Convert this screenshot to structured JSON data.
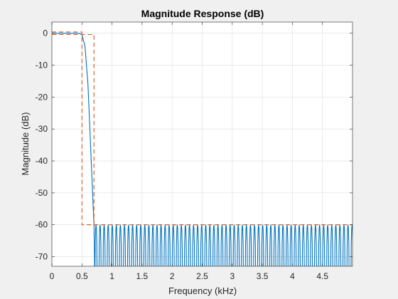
{
  "chart_data": {
    "type": "line",
    "title": "Magnitude Response (dB)",
    "xlabel": "Frequency (kHz)",
    "ylabel": "Magnitude (dB)",
    "xlim": [
      0,
      5
    ],
    "ylim": [
      -73,
      3.5
    ],
    "grid": true,
    "x_ticks": [
      {
        "value": 0,
        "label": "0"
      },
      {
        "value": 0.5,
        "label": "0.5"
      },
      {
        "value": 1,
        "label": "1"
      },
      {
        "value": 1.5,
        "label": "1.5"
      },
      {
        "value": 2,
        "label": "2"
      },
      {
        "value": 2.5,
        "label": "2.5"
      },
      {
        "value": 3,
        "label": "3"
      },
      {
        "value": 3.5,
        "label": "3.5"
      },
      {
        "value": 4,
        "label": "4"
      },
      {
        "value": 4.5,
        "label": "4.5"
      }
    ],
    "y_ticks": [
      {
        "value": 0,
        "label": "0"
      },
      {
        "value": -10,
        "label": "-10"
      },
      {
        "value": -20,
        "label": "-20"
      },
      {
        "value": -30,
        "label": "-30"
      },
      {
        "value": -40,
        "label": "-40"
      },
      {
        "value": -50,
        "label": "-50"
      },
      {
        "value": -60,
        "label": "-60"
      },
      {
        "value": -70,
        "label": "-70"
      }
    ],
    "series": [
      {
        "color": "#0072BD",
        "style": "solid",
        "passband_edge_khz": 0.5,
        "stopband_edge_khz": 0.7,
        "stopband_peak_db": -60,
        "lobe_width_khz": 0.0676,
        "points": [
          [
            0,
            0
          ],
          [
            0.45,
            0
          ],
          [
            0.5,
            -0.5
          ],
          [
            0.55,
            -4
          ],
          [
            0.6,
            -16
          ],
          [
            0.65,
            -38
          ],
          [
            0.7,
            -60
          ]
        ]
      },
      {
        "color": "#D95319",
        "style": "dashed",
        "points": [
          [
            0,
            0.4
          ],
          [
            0.5,
            0.4
          ],
          [
            0.5,
            -60
          ],
          [
            0.7,
            -60
          ],
          [
            0.7,
            -0.4
          ],
          [
            0,
            -0.4
          ]
        ],
        "stopband_line": [
          [
            0.7,
            -60
          ],
          [
            5,
            -60
          ]
        ]
      }
    ]
  }
}
